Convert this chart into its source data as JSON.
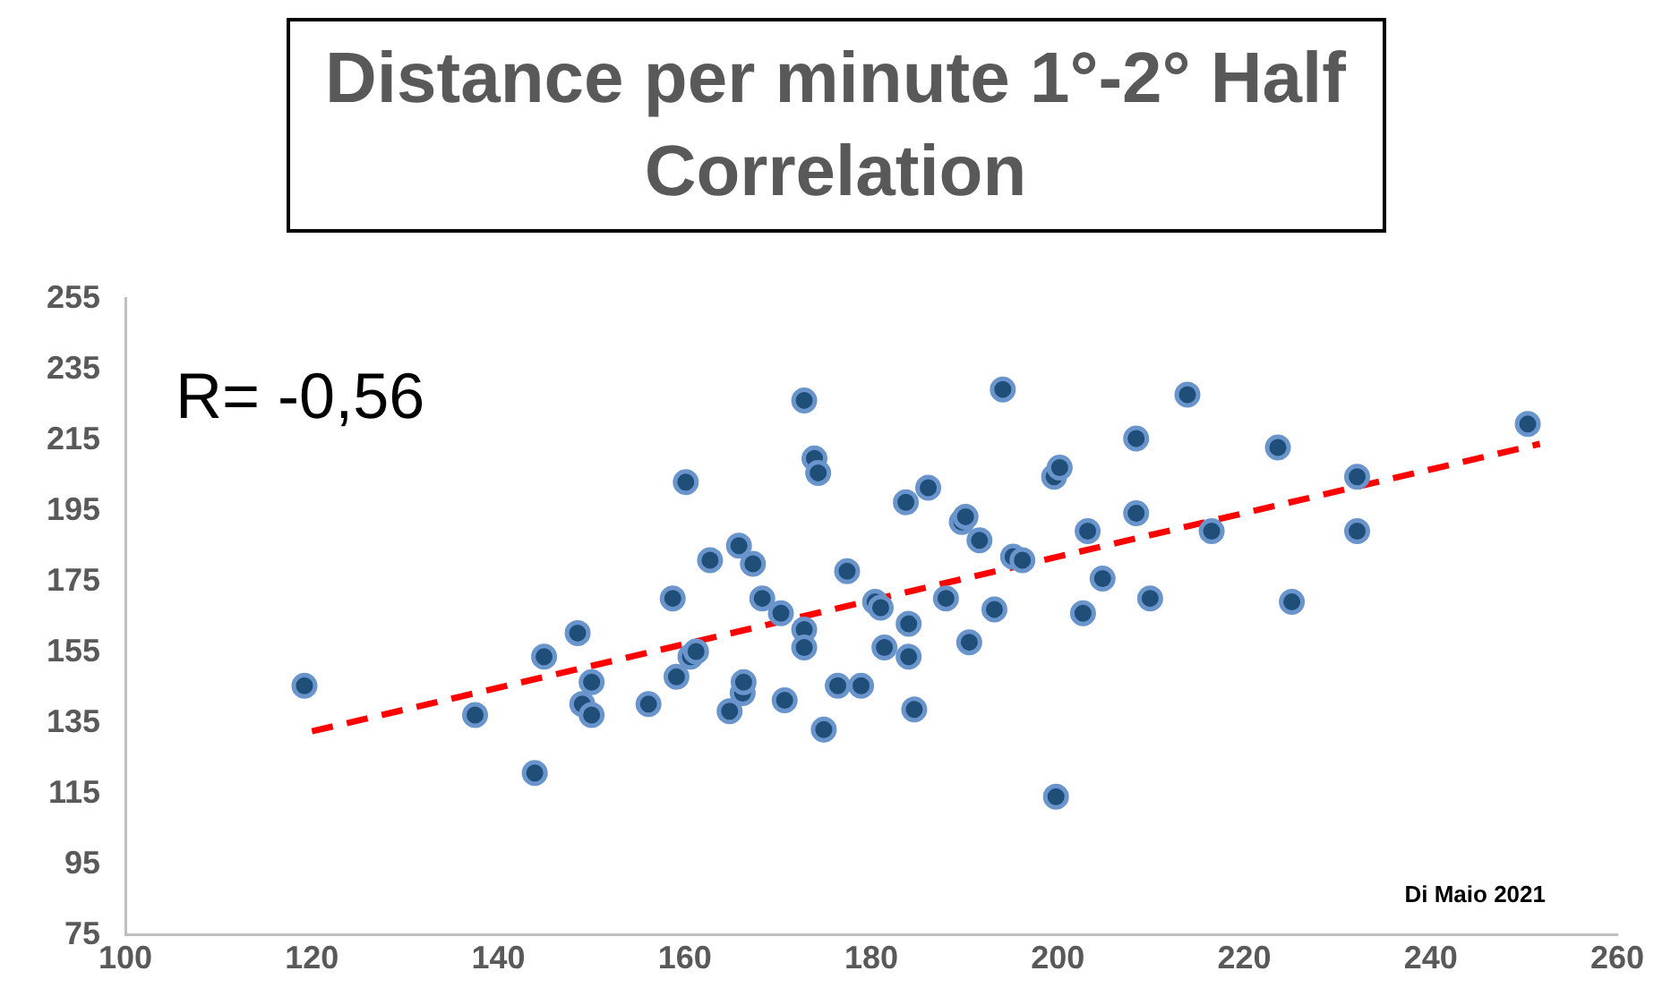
{
  "chart_data": {
    "type": "scatter",
    "title": "Distance per minute 1°-2° Half Correlation",
    "annotations": [
      "R= -0,56",
      "Di Maio 2021"
    ],
    "xlim": [
      100,
      260
    ],
    "xticks": [
      100,
      120,
      140,
      160,
      180,
      200,
      220,
      240,
      260
    ],
    "ylim": [
      75,
      255
    ],
    "yticks": [
      75,
      95,
      115,
      135,
      155,
      175,
      195,
      215,
      235,
      255
    ],
    "grid": false,
    "legend": false,
    "marker": "circle",
    "series": [
      {
        "type": "scatter",
        "color": "#1f4e79",
        "x": [
          119.2,
          137.5,
          143.9,
          144.9,
          148.5,
          149.0,
          150.0,
          150.0,
          156.1,
          158.7,
          159.1,
          160.1,
          160.6,
          161.2,
          162.7,
          164.8,
          165.8,
          166.2,
          166.3,
          167.3,
          168.3,
          170.3,
          170.7,
          172.8,
          172.8,
          172.8,
          173.9,
          174.3,
          174.9,
          176.4,
          177.4,
          178.9,
          180.4,
          181.0,
          181.4,
          183.7,
          184.0,
          184.0,
          184.6,
          186.1,
          188.0,
          189.7,
          190.1,
          190.5,
          191.6,
          193.2,
          194.1,
          195.2,
          196.2,
          199.6,
          200.2,
          199.8,
          202.7,
          203.2,
          204.8,
          208.4,
          208.4,
          209.9,
          213.9,
          216.5,
          223.6,
          225.1,
          232.1,
          232.1,
          250.4
        ],
        "values": [
          145.5,
          137.2,
          120.8,
          153.7,
          160.4,
          140.3,
          146.5,
          137.2,
          140.3,
          170.2,
          148.0,
          203.1,
          153.7,
          155.2,
          181.0,
          138.3,
          185.1,
          143.4,
          146.5,
          180.0,
          170.2,
          166.0,
          141.4,
          226.2,
          161.4,
          156.3,
          209.8,
          205.7,
          133.1,
          145.5,
          177.9,
          145.5,
          169.2,
          167.6,
          156.3,
          197.4,
          163.0,
          153.7,
          138.8,
          201.5,
          170.2,
          191.8,
          193.3,
          157.8,
          186.6,
          167.1,
          229.3,
          182.0,
          181.0,
          204.6,
          207.2,
          114.1,
          166.0,
          189.2,
          175.8,
          215.4,
          194.3,
          170.2,
          227.8,
          189.2,
          212.9,
          169.2,
          204.6,
          189.2,
          219.5
        ]
      },
      {
        "type": "line",
        "color": "#ff0000",
        "line_style": "dashed",
        "marker": "none",
        "x": [
          120,
          251.7
        ],
        "values": [
          132.6,
          213.9
        ]
      }
    ]
  }
}
